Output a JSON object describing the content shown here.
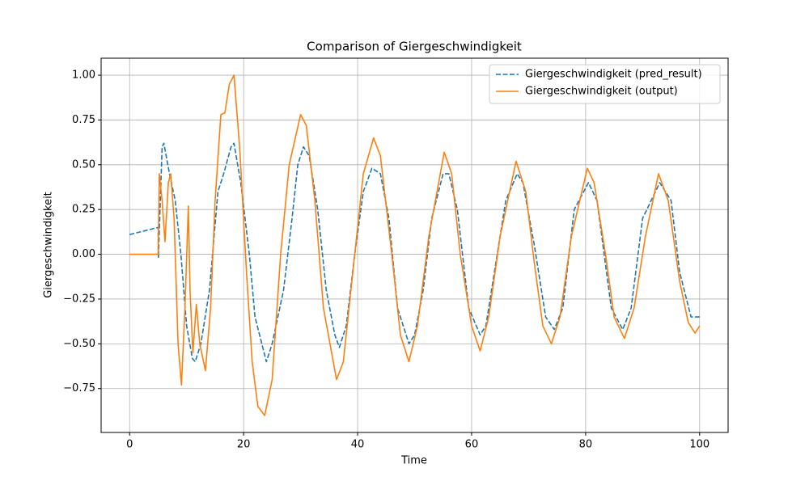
{
  "chart_data": {
    "type": "line",
    "title": "Comparison of Giergeschwindigkeit",
    "xlabel": "Time",
    "ylabel": "Giergeschwindigkeit",
    "xlim": [
      -5,
      105
    ],
    "ylim": [
      -0.995,
      1.095
    ],
    "xticks": [
      0,
      20,
      40,
      60,
      80,
      100
    ],
    "yticks": [
      {
        "value": -0.75,
        "label": "−0.75"
      },
      {
        "value": -0.5,
        "label": "−0.50"
      },
      {
        "value": -0.25,
        "label": "−0.25"
      },
      {
        "value": 0,
        "label": "0.00"
      },
      0.25,
      {
        "value": 0.5,
        "label": "0.50"
      },
      0.75,
      {
        "value": 1,
        "label": "1.00"
      }
    ],
    "grid": true,
    "legend": "upper-right",
    "series": [
      {
        "name": "Giergeschwindigkeit (pred_result)",
        "color": "#1f77b4",
        "dash": true,
        "x": [
          0,
          5,
          5.05,
          5.7,
          6,
          7,
          8,
          9,
          10,
          11,
          11.5,
          12.5,
          14,
          15.5,
          16.5,
          17.8,
          18.3,
          19.5,
          21,
          22,
          24,
          25,
          27,
          28.5,
          29.5,
          30.5,
          31.5,
          33,
          34.5,
          36,
          36.8,
          38,
          39.5,
          41,
          42.5,
          44,
          45.5,
          47,
          49,
          50,
          51.5,
          53,
          55,
          56,
          57.5,
          59.5,
          61.5,
          62.5,
          64,
          66,
          68,
          69,
          71,
          73,
          74.5,
          76,
          78,
          80.5,
          82,
          84.5,
          86.5,
          88,
          90,
          93,
          95,
          96.5,
          98.5,
          100
        ],
        "values": [
          0.11,
          0.15,
          -0.02,
          0.6,
          0.62,
          0.45,
          0.3,
          0.0,
          -0.4,
          -0.58,
          -0.6,
          -0.5,
          -0.2,
          0.35,
          0.45,
          0.6,
          0.62,
          0.4,
          0.0,
          -0.35,
          -0.6,
          -0.5,
          -0.2,
          0.2,
          0.5,
          0.6,
          0.55,
          0.25,
          -0.2,
          -0.45,
          -0.52,
          -0.4,
          0.0,
          0.35,
          0.48,
          0.45,
          0.2,
          -0.3,
          -0.5,
          -0.45,
          -0.2,
          0.2,
          0.45,
          0.45,
          0.25,
          -0.3,
          -0.45,
          -0.4,
          -0.1,
          0.3,
          0.45,
          0.4,
          0.05,
          -0.35,
          -0.42,
          -0.3,
          0.25,
          0.4,
          0.3,
          -0.3,
          -0.42,
          -0.3,
          0.2,
          0.4,
          0.3,
          -0.1,
          -0.35,
          -0.35
        ]
      },
      {
        "name": "Giergeschwindigkeit (output)",
        "color": "#ff7f0e",
        "dash": false,
        "x": [
          0,
          5,
          5.2,
          5.7,
          6.2,
          6.8,
          7.2,
          7.8,
          8.5,
          9.1,
          9.7,
          10.3,
          10.6,
          11.1,
          11.7,
          12.3,
          13.3,
          14.2,
          15,
          16,
          16.7,
          17.5,
          18.3,
          19.3,
          20.5,
          21.5,
          22.5,
          23.7,
          25,
          26.5,
          28,
          30,
          31,
          32.5,
          34,
          36.3,
          37.5,
          39.5,
          41,
          42.8,
          44,
          46,
          47.5,
          49,
          50.5,
          52.5,
          55.2,
          56.5,
          58,
          60,
          61.5,
          63,
          65,
          67.8,
          69.5,
          71,
          72.5,
          74,
          75.5,
          77.5,
          80.3,
          81.5,
          83.5,
          85,
          86.8,
          88.5,
          90.5,
          92.8,
          94.5,
          96.5,
          98,
          99.2,
          100
        ],
        "values": [
          0,
          0,
          0.45,
          0.3,
          0.07,
          0.4,
          0.45,
          0.2,
          -0.5,
          -0.73,
          -0.3,
          0.27,
          -0.2,
          -0.55,
          -0.28,
          -0.5,
          -0.65,
          -0.3,
          0.3,
          0.78,
          0.79,
          0.95,
          1.0,
          0.6,
          -0.1,
          -0.6,
          -0.85,
          -0.9,
          -0.7,
          0,
          0.5,
          0.78,
          0.72,
          0.3,
          -0.3,
          -0.7,
          -0.6,
          0.0,
          0.45,
          0.65,
          0.55,
          0,
          -0.45,
          -0.6,
          -0.4,
          0.1,
          0.57,
          0.45,
          0.0,
          -0.4,
          -0.54,
          -0.35,
          0.1,
          0.52,
          0.35,
          -0.05,
          -0.4,
          -0.5,
          -0.35,
          0.1,
          0.48,
          0.4,
          0,
          -0.35,
          -0.47,
          -0.3,
          0.1,
          0.45,
          0.3,
          -0.15,
          -0.38,
          -0.44,
          -0.4
        ]
      }
    ]
  }
}
